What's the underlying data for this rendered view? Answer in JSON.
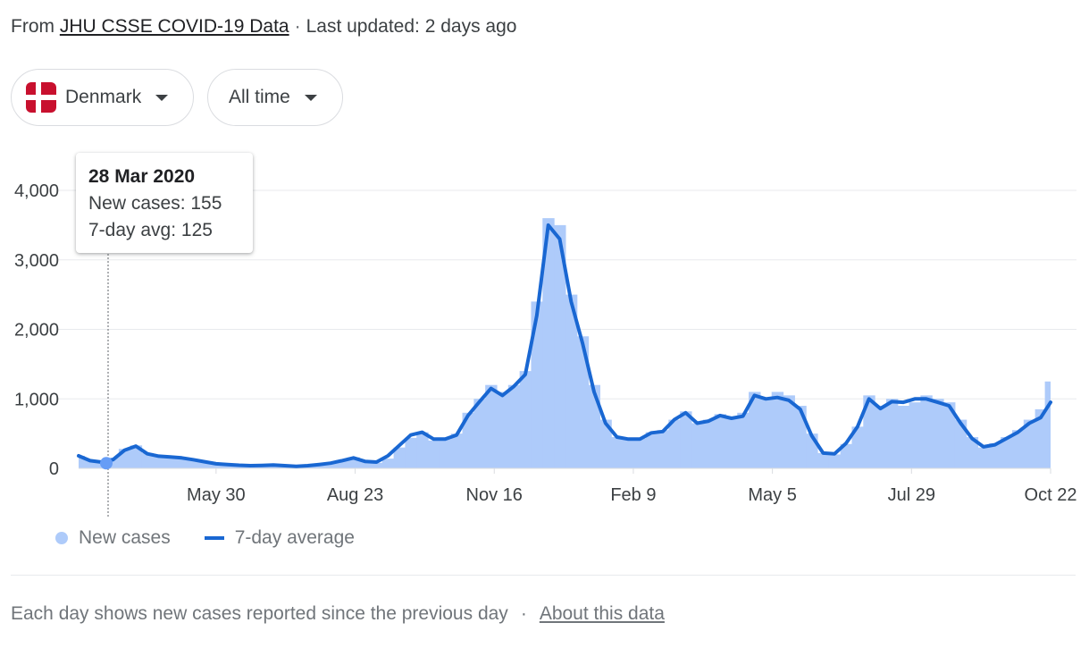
{
  "source": {
    "prefix": "From",
    "link_label": "JHU CSSE COVID-19 Data",
    "separator": "·",
    "updated": "Last updated: 2 days ago"
  },
  "filters": {
    "country": "Denmark",
    "time_range": "All time"
  },
  "tooltip": {
    "date": "28 Mar 2020",
    "new_cases": "New cases: 155",
    "avg": "7-day avg: 125"
  },
  "legend": {
    "new_cases": "New cases",
    "avg": "7-day average"
  },
  "footer": {
    "note": "Each day shows new cases reported since the previous day",
    "separator": "·",
    "about_link": "About this data"
  },
  "colors": {
    "bars": "#aecbfa",
    "line": "#1967d2",
    "grid": "#e8eaed",
    "flag_red": "#c8102e",
    "flag_white": "#ffffff"
  },
  "chart_data": {
    "type": "bar",
    "ylim": [
      0,
      4500
    ],
    "y_ticks": [
      "0",
      "1,000",
      "2,000",
      "3,000",
      "4,000"
    ],
    "x_ticks": [
      "May 30",
      "Aug 23",
      "Nov 16",
      "Feb 9",
      "May 5",
      "Jul 29",
      "Oct 22"
    ],
    "tooltip_index": 3,
    "x": [
      "2020-03-07",
      "2020-03-14",
      "2020-03-21",
      "2020-03-28",
      "2020-04-04",
      "2020-04-11",
      "2020-04-18",
      "2020-04-25",
      "2020-05-02",
      "2020-05-09",
      "2020-05-16",
      "2020-05-23",
      "2020-05-30",
      "2020-06-06",
      "2020-06-13",
      "2020-06-20",
      "2020-06-27",
      "2020-07-04",
      "2020-07-11",
      "2020-07-18",
      "2020-07-25",
      "2020-08-01",
      "2020-08-08",
      "2020-08-15",
      "2020-08-22",
      "2020-08-29",
      "2020-09-05",
      "2020-09-12",
      "2020-09-19",
      "2020-09-26",
      "2020-10-03",
      "2020-10-10",
      "2020-10-17",
      "2020-10-24",
      "2020-10-31",
      "2020-11-07",
      "2020-11-14",
      "2020-11-21",
      "2020-11-28",
      "2020-12-05",
      "2020-12-12",
      "2020-12-19",
      "2020-12-26",
      "2021-01-02",
      "2021-01-09",
      "2021-01-16",
      "2021-01-23",
      "2021-01-30",
      "2021-02-06",
      "2021-02-13",
      "2021-02-20",
      "2021-02-27",
      "2021-03-06",
      "2021-03-13",
      "2021-03-20",
      "2021-03-27",
      "2021-04-03",
      "2021-04-10",
      "2021-04-17",
      "2021-04-24",
      "2021-05-01",
      "2021-05-08",
      "2021-05-15",
      "2021-05-22",
      "2021-05-29",
      "2021-06-05",
      "2021-06-12",
      "2021-06-19",
      "2021-06-26",
      "2021-07-03",
      "2021-07-10",
      "2021-07-17",
      "2021-07-24",
      "2021-07-31",
      "2021-08-07",
      "2021-08-14",
      "2021-08-21",
      "2021-08-28",
      "2021-09-04",
      "2021-09-11",
      "2021-09-18",
      "2021-09-25",
      "2021-10-02",
      "2021-10-09",
      "2021-10-16",
      "2021-10-22"
    ],
    "series": [
      {
        "name": "New cases",
        "values": [
          180,
          120,
          80,
          155,
          280,
          330,
          220,
          180,
          170,
          150,
          130,
          100,
          70,
          55,
          45,
          40,
          45,
          50,
          40,
          30,
          40,
          60,
          80,
          120,
          160,
          110,
          80,
          140,
          300,
          440,
          520,
          400,
          420,
          500,
          800,
          1000,
          1200,
          1100,
          1200,
          1400,
          2400,
          3600,
          3500,
          2500,
          1900,
          1200,
          700,
          450,
          420,
          430,
          520,
          550,
          700,
          820,
          650,
          700,
          780,
          720,
          800,
          1100,
          1000,
          1100,
          1050,
          900,
          500,
          220,
          200,
          350,
          600,
          1050,
          900,
          1000,
          900,
          950,
          1050,
          1000,
          950,
          700,
          450,
          300,
          360,
          450,
          550,
          700,
          850,
          1250
        ]
      },
      {
        "name": "7-day average",
        "values": [
          180,
          110,
          90,
          125,
          260,
          320,
          210,
          175,
          165,
          150,
          125,
          95,
          65,
          55,
          45,
          38,
          42,
          48,
          38,
          30,
          38,
          55,
          75,
          110,
          150,
          100,
          90,
          180,
          330,
          480,
          520,
          420,
          420,
          480,
          760,
          960,
          1150,
          1050,
          1180,
          1350,
          2200,
          3500,
          3300,
          2400,
          1800,
          1100,
          650,
          450,
          420,
          420,
          510,
          530,
          700,
          800,
          650,
          680,
          760,
          720,
          750,
          1050,
          1000,
          1020,
          980,
          850,
          470,
          220,
          210,
          360,
          600,
          1000,
          860,
          960,
          950,
          1000,
          1000,
          950,
          900,
          650,
          430,
          310,
          340,
          430,
          520,
          650,
          730,
          950
        ]
      }
    ]
  }
}
